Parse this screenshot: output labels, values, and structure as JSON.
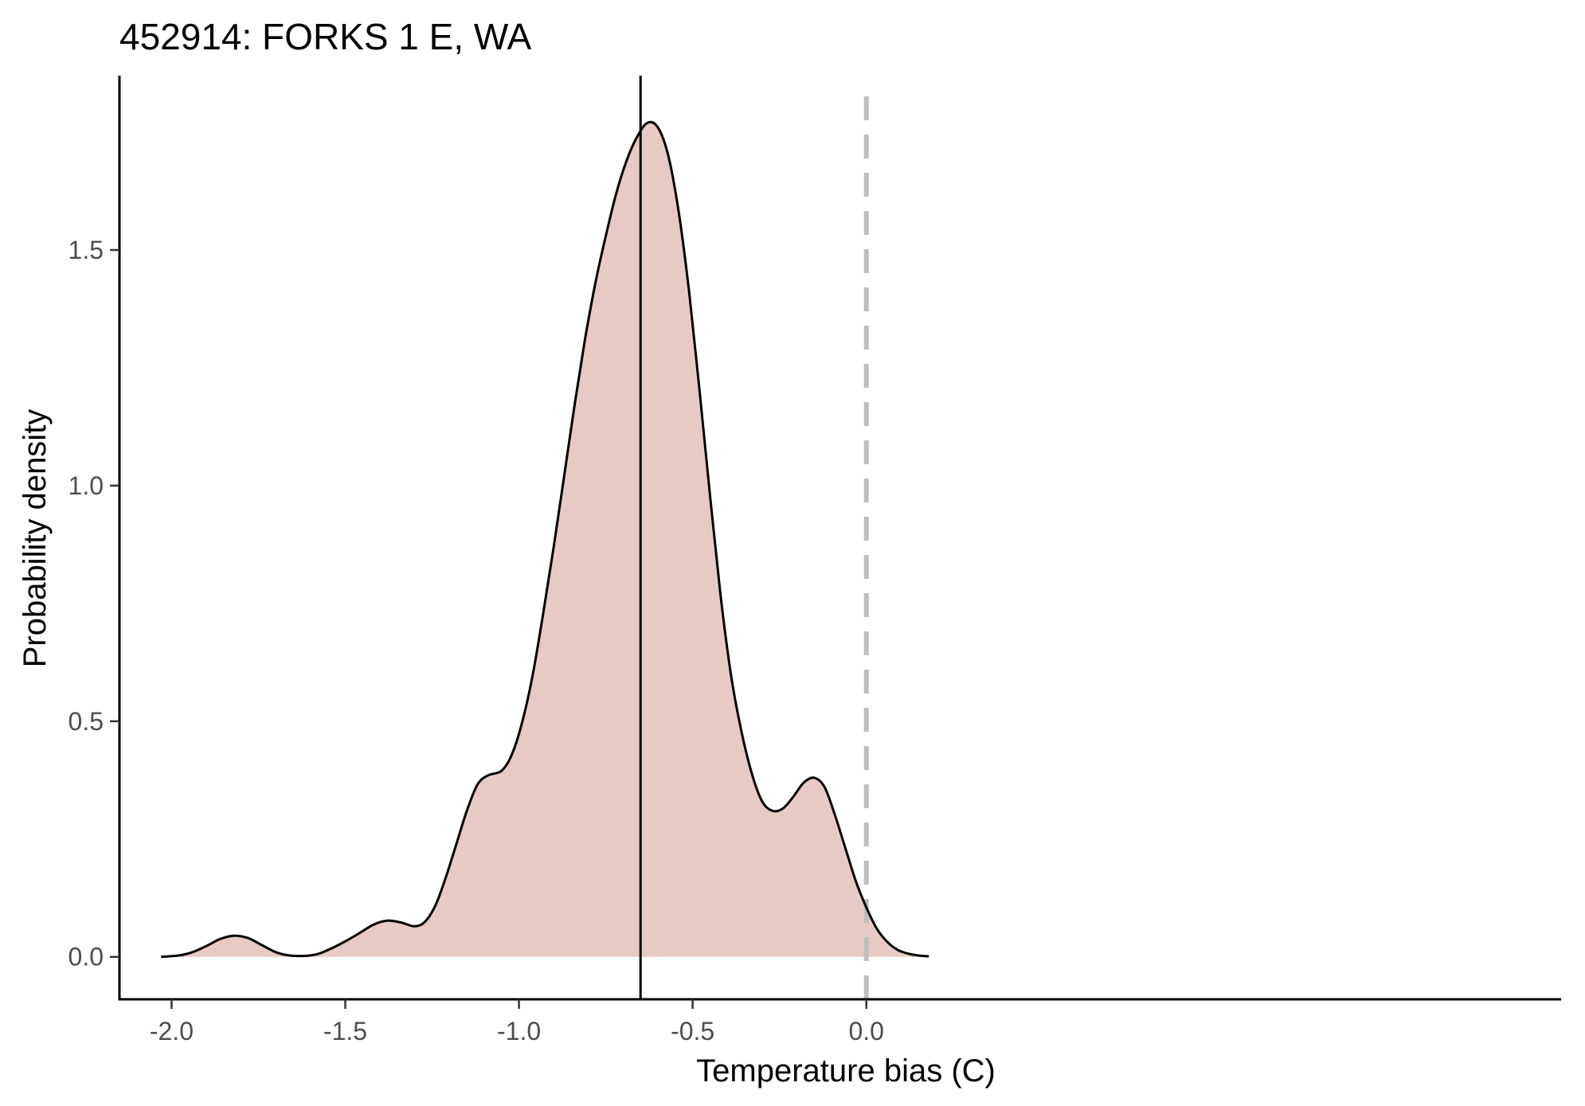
{
  "chart_data": {
    "type": "area",
    "title": "452914: FORKS 1 E, WA",
    "xlabel": "Temperature bias (C)",
    "ylabel": "Probability density",
    "xlim": [
      -2.15,
      2.0
    ],
    "ylim": [
      -0.09,
      1.87
    ],
    "x_ticks": [
      {
        "value": -2.0,
        "label": "-2.0"
      },
      {
        "value": -1.5,
        "label": "-1.5"
      },
      {
        "value": -1.0,
        "label": "-1.0"
      },
      {
        "value": -0.5,
        "label": "-0.5"
      },
      {
        "value": 0.0,
        "label": "0.0"
      }
    ],
    "y_ticks": [
      {
        "value": 0.0,
        "label": "0.0"
      },
      {
        "value": 0.5,
        "label": "0.5"
      },
      {
        "value": 1.0,
        "label": "1.0"
      },
      {
        "value": 1.5,
        "label": "1.5"
      }
    ],
    "x_axis_max": 0.27,
    "grid": false,
    "legend": "none",
    "fill_color": "#e8cac4",
    "line_color": "#000000",
    "mean_line": {
      "x": -0.65,
      "color": "#000000",
      "style": "solid"
    },
    "zero_line": {
      "x": 0.0,
      "color": "#bebebe",
      "style": "dashed",
      "y_top": 1.83
    },
    "series": [
      {
        "x": [
          -2.03,
          -1.98,
          -1.94,
          -1.9,
          -1.86,
          -1.82,
          -1.78,
          -1.74,
          -1.7,
          -1.66,
          -1.62,
          -1.58,
          -1.54,
          -1.5,
          -1.46,
          -1.42,
          -1.38,
          -1.34,
          -1.3,
          -1.27,
          -1.24,
          -1.21,
          -1.18,
          -1.15,
          -1.12,
          -1.09,
          -1.05,
          -1.02,
          -0.99,
          -0.96,
          -0.93,
          -0.9,
          -0.87,
          -0.84,
          -0.81,
          -0.78,
          -0.75,
          -0.72,
          -0.69,
          -0.66,
          -0.63,
          -0.6,
          -0.57,
          -0.54,
          -0.51,
          -0.48,
          -0.45,
          -0.42,
          -0.39,
          -0.36,
          -0.33,
          -0.3,
          -0.27,
          -0.24,
          -0.21,
          -0.18,
          -0.15,
          -0.12,
          -0.09,
          -0.06,
          -0.03,
          0.0,
          0.03,
          0.06,
          0.09,
          0.12,
          0.15,
          0.18
        ],
        "y": [
          0.0,
          0.003,
          0.01,
          0.023,
          0.038,
          0.045,
          0.04,
          0.025,
          0.01,
          0.003,
          0.002,
          0.006,
          0.018,
          0.033,
          0.05,
          0.068,
          0.077,
          0.073,
          0.065,
          0.075,
          0.11,
          0.17,
          0.24,
          0.31,
          0.365,
          0.385,
          0.395,
          0.43,
          0.5,
          0.6,
          0.73,
          0.87,
          1.02,
          1.17,
          1.31,
          1.43,
          1.53,
          1.62,
          1.69,
          1.74,
          1.77,
          1.76,
          1.7,
          1.58,
          1.41,
          1.2,
          0.98,
          0.77,
          0.6,
          0.48,
          0.39,
          0.33,
          0.31,
          0.315,
          0.34,
          0.37,
          0.38,
          0.36,
          0.3,
          0.23,
          0.16,
          0.105,
          0.06,
          0.032,
          0.015,
          0.007,
          0.003,
          0.001
        ]
      }
    ]
  }
}
